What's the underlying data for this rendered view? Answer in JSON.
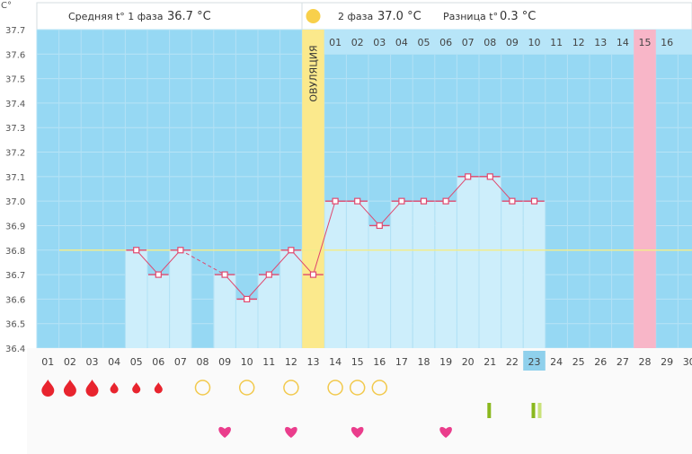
{
  "header": {
    "unit": "C°",
    "phase1_label": "Средняя t° 1 фаза",
    "phase1_value": "36.7 °C",
    "phase2_label": "2 фаза",
    "phase2_value": "37.0 °C",
    "diff_label": "Разница t°",
    "diff_value": "0.3 °C"
  },
  "ovulation_label": "ОВУЛЯЦИЯ",
  "colors": {
    "sky": "#96d8f3",
    "bar": "#cdeefb",
    "ovulation": "#fbe98c",
    "period_expected": "#f8b6c8",
    "line": "#e0486e",
    "coverline": "#f2ec8c",
    "drop": "#e8242e",
    "fertile_ring": "#f2c94c",
    "heart": "#ea3d8c",
    "test": "#8ab81e",
    "today": "#8fd0ec"
  },
  "chart_data": {
    "type": "line",
    "ylabel": "C°",
    "ylim": [
      36.4,
      37.7
    ],
    "yticks": [
      "36.4",
      "36.5",
      "36.6",
      "36.7",
      "36.8",
      "36.9",
      "37.0",
      "37.1",
      "37.2",
      "37.3",
      "37.4",
      "37.5",
      "37.6",
      "37.7"
    ],
    "days": [
      "01",
      "02",
      "03",
      "04",
      "05",
      "06",
      "07",
      "08",
      "09",
      "10",
      "11",
      "12",
      "13",
      "14",
      "15",
      "16",
      "17",
      "18",
      "19",
      "20",
      "21",
      "22",
      "23",
      "24",
      "25",
      "26",
      "27",
      "28",
      "29",
      "30"
    ],
    "temperatures": [
      null,
      null,
      null,
      null,
      36.8,
      36.7,
      36.8,
      null,
      36.7,
      36.6,
      36.7,
      36.8,
      36.7,
      37.0,
      37.0,
      36.9,
      37.0,
      37.0,
      37.0,
      37.1,
      37.1,
      37.0,
      37.0,
      null,
      null,
      null,
      null,
      null,
      null,
      null
    ],
    "coverline": 36.8,
    "ovulation_day": "13",
    "today": "23",
    "luteal_days": [
      "01",
      "02",
      "03",
      "04",
      "05",
      "06",
      "07",
      "08",
      "09",
      "10",
      "11",
      "12",
      "13",
      "14",
      "15",
      "16"
    ],
    "expected_period_luteal_day": "15",
    "menstruation": [
      {
        "day": "01",
        "size": "large"
      },
      {
        "day": "02",
        "size": "large"
      },
      {
        "day": "03",
        "size": "large"
      },
      {
        "day": "04",
        "size": "small"
      },
      {
        "day": "05",
        "size": "small"
      },
      {
        "day": "06",
        "size": "small"
      }
    ],
    "fertile_days": [
      "08",
      "10",
      "12",
      "14",
      "15",
      "16"
    ],
    "tests": [
      {
        "day": "21",
        "marks": 1
      },
      {
        "day": "23",
        "marks": 2
      }
    ],
    "intercourse_days": [
      "09",
      "12",
      "15",
      "19"
    ]
  }
}
